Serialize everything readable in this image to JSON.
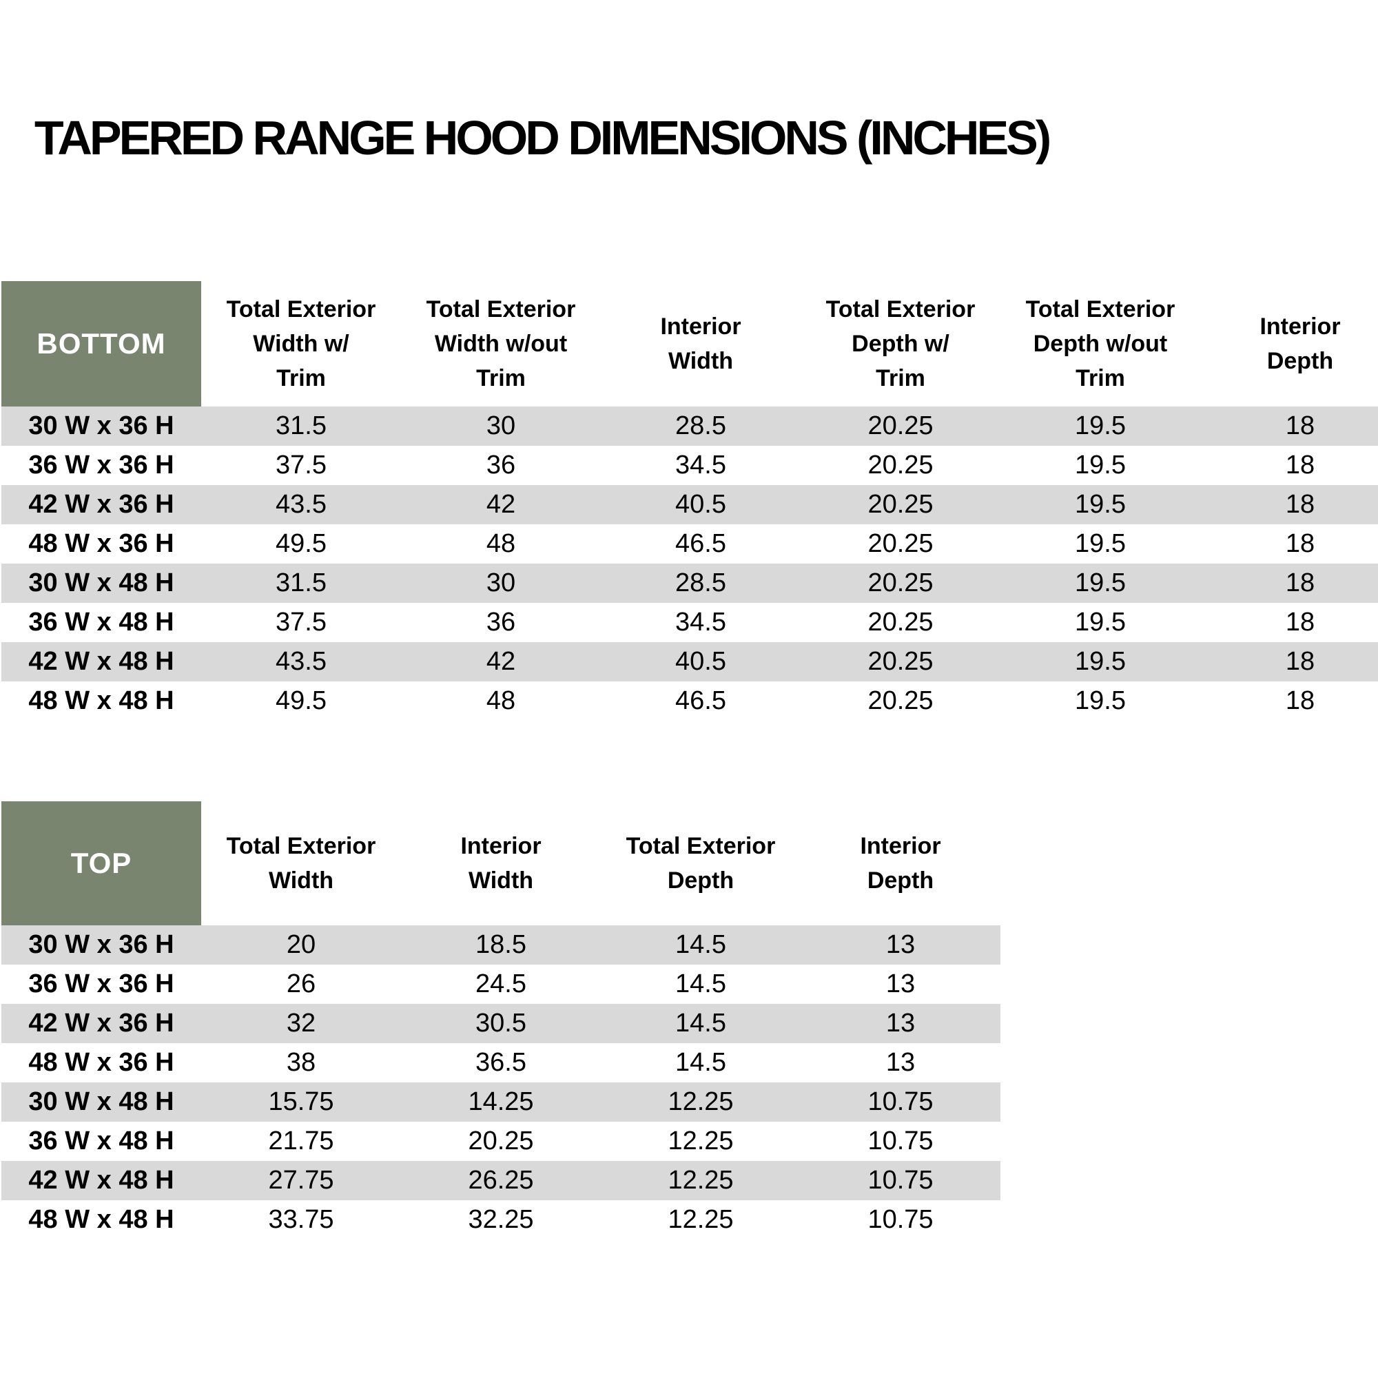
{
  "page": {
    "title": "TAPERED RANGE HOOD DIMENSIONS (INCHES)"
  },
  "colors": {
    "header_green": "#7A8570",
    "row_gray": "#D9D9D9",
    "page_bg": "#FFFFFF",
    "text": "#000000",
    "corner_text": "#FFFFFF"
  },
  "bottom_table": {
    "corner_label": "BOTTOM",
    "columns": [
      [
        "Total Exterior",
        "Width w/",
        "Trim"
      ],
      [
        "Total Exterior",
        "Width w/out",
        "Trim"
      ],
      [
        "Interior",
        "Width"
      ],
      [
        "Total Exterior",
        "Depth w/",
        "Trim"
      ],
      [
        "Total Exterior",
        "Depth w/out",
        "Trim"
      ],
      [
        "Interior",
        "Depth"
      ]
    ],
    "rows": [
      {
        "label": "30 W x 36 H",
        "values": [
          "31.5",
          "30",
          "28.5",
          "20.25",
          "19.5",
          "18"
        ]
      },
      {
        "label": "36 W x 36 H",
        "values": [
          "37.5",
          "36",
          "34.5",
          "20.25",
          "19.5",
          "18"
        ]
      },
      {
        "label": "42 W x 36 H",
        "values": [
          "43.5",
          "42",
          "40.5",
          "20.25",
          "19.5",
          "18"
        ]
      },
      {
        "label": "48 W x 36 H",
        "values": [
          "49.5",
          "48",
          "46.5",
          "20.25",
          "19.5",
          "18"
        ]
      },
      {
        "label": "30 W x 48 H",
        "values": [
          "31.5",
          "30",
          "28.5",
          "20.25",
          "19.5",
          "18"
        ]
      },
      {
        "label": "36 W x 48 H",
        "values": [
          "37.5",
          "36",
          "34.5",
          "20.25",
          "19.5",
          "18"
        ]
      },
      {
        "label": "42 W x 48 H",
        "values": [
          "43.5",
          "42",
          "40.5",
          "20.25",
          "19.5",
          "18"
        ]
      },
      {
        "label": "48 W x 48 H",
        "values": [
          "49.5",
          "48",
          "46.5",
          "20.25",
          "19.5",
          "18"
        ]
      }
    ]
  },
  "top_table": {
    "corner_label": "TOP",
    "columns": [
      [
        "Total Exterior",
        "Width"
      ],
      [
        "Interior",
        "Width"
      ],
      [
        "Total Exterior",
        "Depth"
      ],
      [
        "Interior",
        "Depth"
      ]
    ],
    "rows": [
      {
        "label": "30 W x 36 H",
        "values": [
          "20",
          "18.5",
          "14.5",
          "13"
        ]
      },
      {
        "label": "36 W x 36 H",
        "values": [
          "26",
          "24.5",
          "14.5",
          "13"
        ]
      },
      {
        "label": "42 W x 36 H",
        "values": [
          "32",
          "30.5",
          "14.5",
          "13"
        ]
      },
      {
        "label": "48 W x 36 H",
        "values": [
          "38",
          "36.5",
          "14.5",
          "13"
        ]
      },
      {
        "label": "30 W x 48 H",
        "values": [
          "15.75",
          "14.25",
          "12.25",
          "10.75"
        ]
      },
      {
        "label": "36 W x 48 H",
        "values": [
          "21.75",
          "20.25",
          "12.25",
          "10.75"
        ]
      },
      {
        "label": "42 W x 48 H",
        "values": [
          "27.75",
          "26.25",
          "12.25",
          "10.75"
        ]
      },
      {
        "label": "48 W x 48 H",
        "values": [
          "33.75",
          "32.25",
          "12.25",
          "10.75"
        ]
      }
    ]
  }
}
